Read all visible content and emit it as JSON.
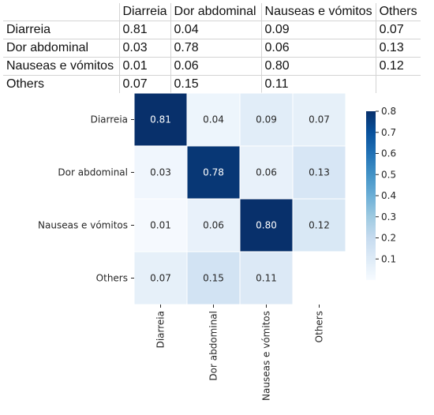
{
  "table": {
    "header": [
      "Diarreia",
      "Dor abdominal",
      "Nauseas e vómitos",
      "Others"
    ],
    "rows": [
      {
        "label": "Diarreia",
        "values": [
          "0.81",
          "0.04",
          "0.09",
          "0.07"
        ]
      },
      {
        "label": "Dor abdominal",
        "values": [
          "0.03",
          "0.78",
          "0.06",
          "0.13"
        ]
      },
      {
        "label": "Nauseas e vómitos",
        "values": [
          "0.01",
          "0.06",
          "0.80",
          "0.12"
        ]
      },
      {
        "label": "Others",
        "values": [
          "0.07",
          "0.15",
          "0.11",
          ""
        ]
      }
    ]
  },
  "chart_data": {
    "type": "heatmap",
    "x_categories": [
      "Diarreia",
      "Dor abdominal",
      "Nauseas e vómitos",
      "Others"
    ],
    "y_categories": [
      "Diarreia",
      "Dor abdominal",
      "Nauseas e vómitos",
      "Others"
    ],
    "values": [
      [
        0.81,
        0.04,
        0.09,
        0.07
      ],
      [
        0.03,
        0.78,
        0.06,
        0.13
      ],
      [
        0.01,
        0.06,
        0.8,
        0.12
      ],
      [
        0.07,
        0.15,
        0.11,
        null
      ]
    ],
    "cell_labels": [
      [
        "0.81",
        "0.04",
        "0.09",
        "0.07"
      ],
      [
        "0.03",
        "0.78",
        "0.06",
        "0.13"
      ],
      [
        "0.01",
        "0.06",
        "0.80",
        "0.12"
      ],
      [
        "0.07",
        "0.15",
        "0.11",
        ""
      ]
    ],
    "colormap": {
      "low": "#f7fbff",
      "high": "#08306b"
    },
    "colorbar": {
      "range": [
        0,
        0.8
      ],
      "ticks": [
        0.1,
        0.2,
        0.3,
        0.4,
        0.5,
        0.6,
        0.7,
        0.8
      ],
      "tick_labels": [
        "0.1",
        "0.2",
        "0.3",
        "0.4",
        "0.5",
        "0.6",
        "0.7",
        "0.8"
      ]
    },
    "title": "",
    "xlabel": "",
    "ylabel": ""
  }
}
